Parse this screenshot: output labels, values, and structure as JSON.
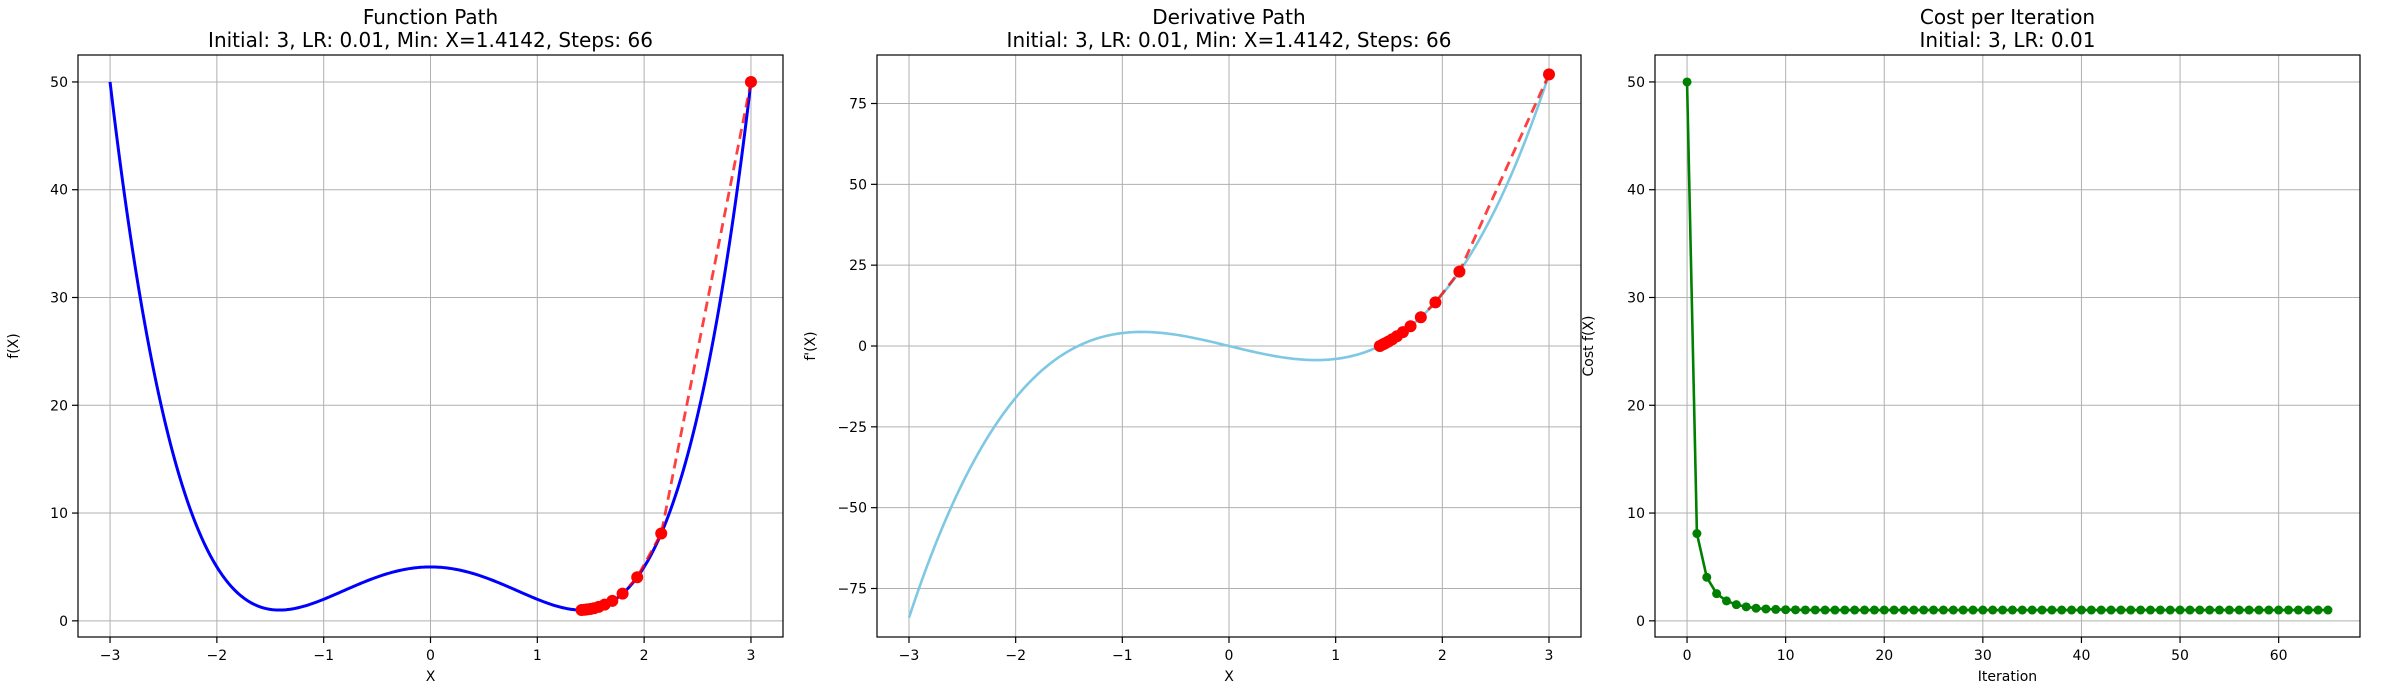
{
  "chart_data": [
    {
      "type": "line",
      "title": "Function Path",
      "subtitle": "Initial: 3, LR: 0.01, Min: X=1.4142, Steps: 66",
      "xlabel": "X",
      "ylabel": "f(X)",
      "xlim": [
        -3.3,
        3.3
      ],
      "ylim": [
        -1.5,
        52.5
      ],
      "xticks": [
        -3,
        -2,
        -1,
        0,
        1,
        2,
        3
      ],
      "yticks": [
        0,
        10,
        20,
        30,
        40,
        50
      ],
      "grid": true,
      "curve": {
        "function": "x^4 - 4x^2 + 5",
        "x_range": [
          -3,
          3
        ],
        "color": "#0000ff"
      },
      "path": {
        "x": [
          3,
          2.16,
          1.9351,
          1.7984,
          1.7022,
          1.6302,
          1.5745,
          1.5305,
          1.4953,
          1.4668,
          1.4434,
          1.4142
        ],
        "y": [
          50,
          8.1,
          4.04,
          2.52,
          1.85,
          1.5,
          1.3,
          1.17,
          1.1,
          1.06,
          1.03,
          1.0
        ],
        "color": "#ff0000",
        "linestyle": "dashed"
      }
    },
    {
      "type": "line",
      "title": "Derivative Path",
      "subtitle": "Initial: 3, LR: 0.01, Min: X=1.4142, Steps: 66",
      "xlabel": "X",
      "ylabel": "f'(X)",
      "xlim": [
        -3.3,
        3.3
      ],
      "ylim": [
        -90,
        90
      ],
      "xticks": [
        -3,
        -2,
        -1,
        0,
        1,
        2,
        3
      ],
      "yticks": [
        -75,
        -50,
        -25,
        0,
        25,
        50,
        75
      ],
      "grid": true,
      "curve": {
        "function": "4x^3 - 8x",
        "x_range": [
          -3,
          3
        ],
        "color": "#7ec8e3"
      },
      "path": {
        "x": [
          3,
          2.16,
          1.9351,
          1.7984,
          1.7022,
          1.6302,
          1.5745,
          1.5305,
          1.4953,
          1.4668,
          1.4434,
          1.4142
        ],
        "y": [
          84,
          23.0,
          13.5,
          8.9,
          6.1,
          4.3,
          3.0,
          2.1,
          1.4,
          0.9,
          0.5,
          0.0
        ],
        "color": "#ff0000",
        "linestyle": "dashed"
      }
    },
    {
      "type": "line",
      "title": "Cost per Iteration",
      "subtitle": "Initial: 3, LR: 0.01",
      "xlabel": "Iteration",
      "ylabel": "Cost f(X)",
      "xlim": [
        -3.25,
        68.25
      ],
      "ylim": [
        -1.5,
        52.5
      ],
      "xticks": [
        0,
        10,
        20,
        30,
        40,
        50,
        60
      ],
      "yticks": [
        0,
        10,
        20,
        30,
        40,
        50
      ],
      "grid": true,
      "series": [
        {
          "color": "#008000",
          "x": [
            0,
            1,
            2,
            3,
            4,
            5,
            6,
            7,
            8,
            9,
            10,
            11,
            12,
            13,
            14,
            15,
            16,
            17,
            18,
            19,
            20,
            21,
            22,
            23,
            24,
            25,
            26,
            27,
            28,
            29,
            30,
            31,
            32,
            33,
            34,
            35,
            36,
            37,
            38,
            39,
            40,
            41,
            42,
            43,
            44,
            45,
            46,
            47,
            48,
            49,
            50,
            51,
            52,
            53,
            54,
            55,
            56,
            57,
            58,
            59,
            60,
            61,
            62,
            63,
            64,
            65
          ],
          "values": [
            50,
            8.1,
            4.04,
            2.52,
            1.85,
            1.5,
            1.3,
            1.17,
            1.1,
            1.06,
            1.03,
            1.02,
            1.01,
            1.01,
            1.0,
            1.0,
            1.0,
            1.0,
            1.0,
            1.0,
            1.0,
            1.0,
            1.0,
            1.0,
            1.0,
            1.0,
            1.0,
            1.0,
            1.0,
            1.0,
            1.0,
            1.0,
            1.0,
            1.0,
            1.0,
            1.0,
            1.0,
            1.0,
            1.0,
            1.0,
            1.0,
            1.0,
            1.0,
            1.0,
            1.0,
            1.0,
            1.0,
            1.0,
            1.0,
            1.0,
            1.0,
            1.0,
            1.0,
            1.0,
            1.0,
            1.0,
            1.0,
            1.0,
            1.0,
            1.0,
            1.0,
            1.0,
            1.0,
            1.0,
            1.0,
            1.0
          ]
        }
      ]
    }
  ]
}
